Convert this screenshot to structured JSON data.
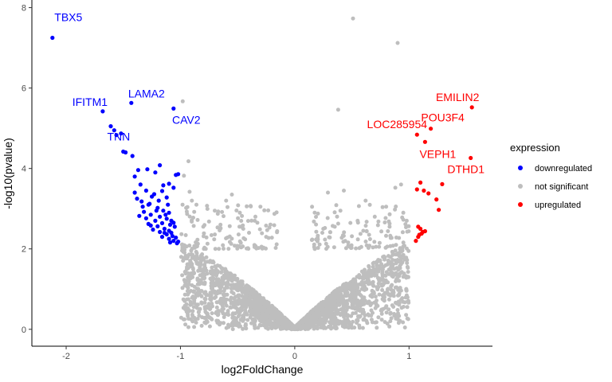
{
  "chart_data": {
    "type": "scatter",
    "xlabel": "log2FoldChange",
    "ylabel": "-log10(pvalue)",
    "xlim": [
      -2.3,
      1.73
    ],
    "ylim": [
      -0.42,
      8.15
    ],
    "x_ticks": [
      -2,
      -1,
      0,
      1
    ],
    "y_ticks": [
      0,
      2,
      4,
      6,
      8
    ],
    "grid": false,
    "legend_position": "right",
    "legend": {
      "title": "expression",
      "entries": [
        {
          "key": "down",
          "label": "downregulated",
          "color": "#0000ff"
        },
        {
          "key": "ns",
          "label": "not significant",
          "color": "#bebebe"
        },
        {
          "key": "up",
          "label": "upregulated",
          "color": "#ff0000"
        }
      ]
    },
    "labeled_genes": [
      {
        "name": "TBX5",
        "x": -2.12,
        "y": 7.25,
        "group": "down"
      },
      {
        "name": "IFITM1",
        "x": -1.68,
        "y": 5.42,
        "group": "down"
      },
      {
        "name": "LAMA2",
        "x": -1.43,
        "y": 5.63,
        "group": "down"
      },
      {
        "name": "CAV2",
        "x": -1.06,
        "y": 5.49,
        "group": "down"
      },
      {
        "name": "TNN",
        "x": -1.52,
        "y": 4.87,
        "group": "down"
      },
      {
        "name": "EMILIN2",
        "x": 1.55,
        "y": 5.52,
        "group": "up"
      },
      {
        "name": "POU3F4",
        "x": 1.19,
        "y": 4.99,
        "group": "up"
      },
      {
        "name": "LOC285954",
        "x": 1.07,
        "y": 4.84,
        "group": "up"
      },
      {
        "name": "VEPH1",
        "x": 1.14,
        "y": 4.66,
        "group": "up"
      },
      {
        "name": "DTHD1",
        "x": 1.54,
        "y": 4.26,
        "group": "up"
      }
    ],
    "points_down": [
      [
        -1.61,
        5.05
      ],
      [
        -1.58,
        4.95
      ],
      [
        -1.56,
        4.83
      ],
      [
        -1.5,
        4.42
      ],
      [
        -1.48,
        4.4
      ],
      [
        -1.42,
        4.31
      ],
      [
        -1.37,
        3.96
      ],
      [
        -1.4,
        3.8
      ],
      [
        -1.29,
        3.98
      ],
      [
        -1.22,
        3.9
      ],
      [
        -1.18,
        4.08
      ],
      [
        -1.15,
        3.58
      ],
      [
        -1.1,
        3.62
      ],
      [
        -1.04,
        3.84
      ],
      [
        -1.02,
        3.86
      ],
      [
        -1.06,
        3.52
      ],
      [
        -1.35,
        3.6
      ],
      [
        -1.3,
        3.45
      ],
      [
        -1.25,
        3.3
      ],
      [
        -1.12,
        3.28
      ],
      [
        -1.4,
        3.4
      ],
      [
        -1.34,
        3.18
      ],
      [
        -1.28,
        3.1
      ],
      [
        -1.2,
        3.02
      ],
      [
        -1.15,
        2.95
      ],
      [
        -1.1,
        2.9
      ],
      [
        -1.32,
        2.92
      ],
      [
        -1.26,
        2.85
      ],
      [
        -1.18,
        2.8
      ],
      [
        -1.12,
        2.75
      ],
      [
        -1.08,
        2.7
      ],
      [
        -1.36,
        2.82
      ],
      [
        -1.3,
        2.76
      ],
      [
        -1.22,
        2.7
      ],
      [
        -1.16,
        2.64
      ],
      [
        -1.09,
        2.6
      ],
      [
        -1.05,
        2.55
      ],
      [
        -1.28,
        2.62
      ],
      [
        -1.2,
        2.56
      ],
      [
        -1.14,
        2.5
      ],
      [
        -1.1,
        2.45
      ],
      [
        -1.24,
        2.48
      ],
      [
        -1.18,
        2.42
      ],
      [
        -1.12,
        2.36
      ],
      [
        -1.07,
        2.32
      ],
      [
        -1.04,
        2.28
      ],
      [
        -1.16,
        2.3
      ],
      [
        -1.1,
        2.25
      ],
      [
        -1.06,
        2.2
      ],
      [
        -1.02,
        2.18
      ],
      [
        -1.09,
        2.16
      ],
      [
        -1.03,
        2.14
      ],
      [
        -1.14,
        2.4
      ],
      [
        -1.26,
        2.58
      ],
      [
        -1.19,
        3.2
      ],
      [
        -1.23,
        3.36
      ],
      [
        -1.16,
        3.44
      ],
      [
        -1.11,
        3.1
      ],
      [
        -1.33,
        3.05
      ],
      [
        -1.38,
        3.25
      ],
      [
        -1.06,
        2.65
      ],
      [
        -1.13,
        2.85
      ],
      [
        -1.21,
        2.95
      ],
      [
        -1.27,
        3.12
      ],
      [
        -1.08,
        2.4
      ]
    ],
    "points_up": [
      [
        1.1,
        3.65
      ],
      [
        1.13,
        3.45
      ],
      [
        1.17,
        3.38
      ],
      [
        1.07,
        3.48
      ],
      [
        1.24,
        3.23
      ],
      [
        1.29,
        3.61
      ],
      [
        1.26,
        2.97
      ],
      [
        1.08,
        2.55
      ],
      [
        1.1,
        2.5
      ],
      [
        1.12,
        2.42
      ],
      [
        1.09,
        2.35
      ],
      [
        1.14,
        2.44
      ],
      [
        1.11,
        2.38
      ],
      [
        1.06,
        2.2
      ],
      [
        1.08,
        2.3
      ]
    ],
    "points_ns_notable": [
      [
        0.51,
        7.73
      ],
      [
        0.9,
        7.12
      ],
      [
        -0.98,
        5.67
      ],
      [
        0.38,
        5.46
      ],
      [
        -0.93,
        4.18
      ],
      [
        -0.97,
        3.82
      ],
      [
        -0.92,
        3.42
      ],
      [
        -0.95,
        3.02
      ],
      [
        -0.88,
        2.92
      ],
      [
        -0.55,
        3.35
      ],
      [
        -0.6,
        3.2
      ],
      [
        -0.48,
        2.9
      ],
      [
        -0.3,
        3.05
      ],
      [
        -0.35,
        2.7
      ],
      [
        -0.7,
        2.95
      ],
      [
        0.43,
        3.45
      ],
      [
        0.29,
        3.4
      ],
      [
        0.62,
        3.2
      ],
      [
        0.8,
        3.05
      ],
      [
        0.88,
        3.52
      ],
      [
        0.93,
        3.6
      ],
      [
        0.95,
        2.9
      ],
      [
        0.7,
        2.8
      ],
      [
        0.55,
        2.7
      ],
      [
        0.35,
        2.55
      ],
      [
        0.4,
        2.95
      ],
      [
        0.83,
        2.55
      ],
      [
        0.98,
        2.7
      ],
      [
        0.25,
        2.5
      ],
      [
        0.6,
        2.45
      ],
      [
        -0.8,
        2.55
      ],
      [
        -0.85,
        2.72
      ],
      [
        -0.75,
        2.68
      ],
      [
        -0.65,
        2.6
      ],
      [
        -0.45,
        2.5
      ],
      [
        -0.4,
        2.4
      ],
      [
        -0.25,
        2.3
      ],
      [
        -0.2,
        2.28
      ],
      [
        0.2,
        2.28
      ],
      [
        0.15,
        2.22
      ],
      [
        -0.9,
        3.2
      ],
      [
        -0.86,
        3.1
      ]
    ]
  }
}
